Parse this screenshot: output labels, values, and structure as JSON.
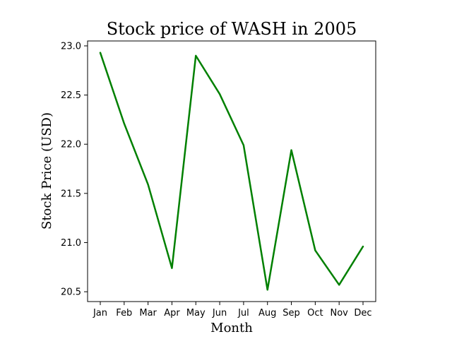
{
  "chart_data": {
    "type": "line",
    "title": "Stock price of WASH in 2005",
    "xlabel": "Month",
    "ylabel": "Stock Price (USD)",
    "categories": [
      "Jan",
      "Feb",
      "Mar",
      "Apr",
      "May",
      "Jun",
      "Jul",
      "Aug",
      "Sep",
      "Oct",
      "Nov",
      "Dec"
    ],
    "series": [
      {
        "values": [
          22.93,
          22.21,
          21.59,
          20.74,
          22.9,
          22.51,
          21.99,
          20.52,
          21.94,
          20.92,
          20.57,
          20.96
        ],
        "color": "#008000"
      }
    ],
    "ylim": [
      20.4,
      23.05
    ],
    "yticks": [
      20.5,
      21.0,
      21.5,
      22.0,
      22.5,
      23.0
    ],
    "ytick_labels": [
      "20.5",
      "21.0",
      "21.5",
      "22.0",
      "22.5",
      "23.0"
    ],
    "grid": false,
    "legend": "none"
  }
}
